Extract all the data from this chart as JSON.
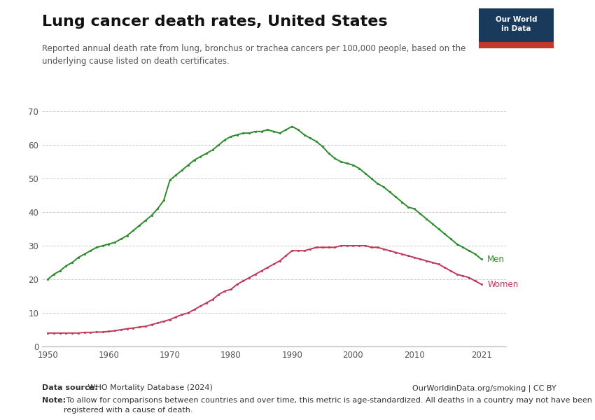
{
  "title": "Lung cancer death rates, United States",
  "subtitle": "Reported annual death rate from lung, bronchus or trachea cancers per 100,000 people, based on the\nunderlying cause listed on death certificates.",
  "ylim": [
    0,
    70
  ],
  "yticks": [
    0,
    10,
    20,
    30,
    40,
    50,
    60,
    70
  ],
  "xticks": [
    1950,
    1960,
    1970,
    1980,
    1990,
    2000,
    2010,
    2021
  ],
  "data_source_bold": "Data source:",
  "data_source_normal": " WHO Mortality Database (2024)",
  "data_source_right": "OurWorldinData.org/smoking | CC BY",
  "note_bold": "Note:",
  "note_normal": " To allow for comparisons between countries and over time, this metric is age-standardized. All deaths in a country may not have been\nregistered with a cause of death.",
  "men_color": "#2d8a2d",
  "women_color": "#c0395a",
  "background_color": "#ffffff",
  "men_years": [
    1950,
    1951,
    1952,
    1953,
    1954,
    1955,
    1956,
    1957,
    1958,
    1959,
    1960,
    1961,
    1962,
    1963,
    1964,
    1965,
    1966,
    1967,
    1968,
    1969,
    1970,
    1971,
    1972,
    1973,
    1974,
    1975,
    1976,
    1977,
    1978,
    1979,
    1980,
    1981,
    1982,
    1983,
    1984,
    1985,
    1986,
    1987,
    1988,
    1989,
    1990,
    1991,
    1992,
    1993,
    1994,
    1995,
    1996,
    1997,
    1998,
    1999,
    2000,
    2001,
    2002,
    2003,
    2004,
    2005,
    2006,
    2007,
    2008,
    2009,
    2010,
    2011,
    2012,
    2013,
    2014,
    2015,
    2016,
    2017,
    2018,
    2019,
    2020,
    2021
  ],
  "men_values": [
    20.0,
    21.5,
    22.5,
    24.0,
    25.0,
    26.5,
    27.5,
    28.5,
    29.5,
    30.0,
    30.5,
    31.0,
    32.0,
    33.0,
    34.5,
    36.0,
    37.5,
    39.0,
    41.0,
    43.5,
    49.5,
    51.0,
    52.5,
    54.0,
    55.5,
    56.5,
    57.5,
    58.5,
    60.0,
    61.5,
    62.5,
    63.0,
    63.5,
    63.5,
    64.0,
    64.0,
    64.5,
    64.0,
    63.5,
    64.5,
    65.5,
    64.5,
    63.0,
    62.0,
    61.0,
    59.5,
    57.5,
    56.0,
    55.0,
    54.5,
    54.0,
    53.0,
    51.5,
    50.0,
    48.5,
    47.5,
    46.0,
    44.5,
    43.0,
    41.5,
    41.0,
    39.5,
    38.0,
    36.5,
    35.0,
    33.5,
    32.0,
    30.5,
    29.5,
    28.5,
    27.5,
    26.0
  ],
  "women_years": [
    1950,
    1951,
    1952,
    1953,
    1954,
    1955,
    1956,
    1957,
    1958,
    1959,
    1960,
    1961,
    1962,
    1963,
    1964,
    1965,
    1966,
    1967,
    1968,
    1969,
    1970,
    1971,
    1972,
    1973,
    1974,
    1975,
    1976,
    1977,
    1978,
    1979,
    1980,
    1981,
    1982,
    1983,
    1984,
    1985,
    1986,
    1987,
    1988,
    1989,
    1990,
    1991,
    1992,
    1993,
    1994,
    1995,
    1996,
    1997,
    1998,
    1999,
    2000,
    2001,
    2002,
    2003,
    2004,
    2005,
    2006,
    2007,
    2008,
    2009,
    2010,
    2011,
    2012,
    2013,
    2014,
    2015,
    2016,
    2017,
    2018,
    2019,
    2020,
    2021
  ],
  "women_values": [
    4.0,
    4.0,
    4.0,
    4.0,
    4.0,
    4.0,
    4.2,
    4.2,
    4.3,
    4.3,
    4.5,
    4.7,
    5.0,
    5.3,
    5.5,
    5.8,
    6.0,
    6.5,
    7.0,
    7.5,
    8.0,
    8.8,
    9.5,
    10.0,
    11.0,
    12.0,
    13.0,
    14.0,
    15.5,
    16.5,
    17.0,
    18.5,
    19.5,
    20.5,
    21.5,
    22.5,
    23.5,
    24.5,
    25.5,
    27.0,
    28.5,
    28.5,
    28.5,
    29.0,
    29.5,
    29.5,
    29.5,
    29.5,
    30.0,
    30.0,
    30.0,
    30.0,
    30.0,
    29.5,
    29.5,
    29.0,
    28.5,
    28.0,
    27.5,
    27.0,
    26.5,
    26.0,
    25.5,
    25.0,
    24.5,
    23.5,
    22.5,
    21.5,
    21.0,
    20.5,
    19.5,
    18.5
  ],
  "logo_bg": "#1a3a5c",
  "logo_red": "#c0392b"
}
